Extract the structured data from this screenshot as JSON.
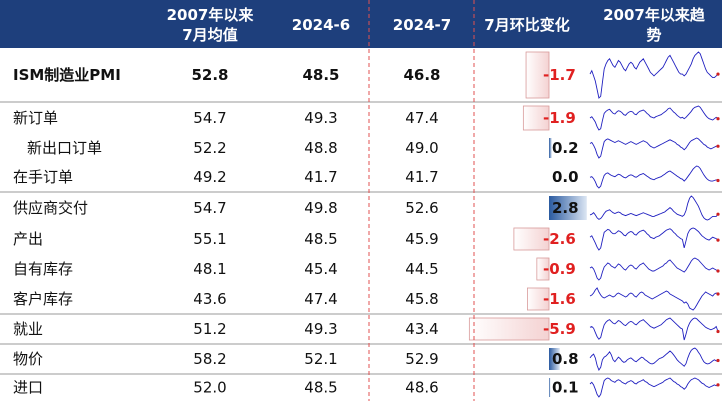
{
  "chart_data": {
    "type": "table",
    "header": {
      "avg": [
        "2007年以来",
        "7月均值"
      ],
      "jun": "2024-6",
      "jul": "2024-7",
      "chg": "7月环比变化",
      "trend": [
        "2007年以来趋",
        "势"
      ]
    },
    "rows": [
      {
        "label": "ISM制造业PMI",
        "avg": "52.8",
        "jun": "48.5",
        "jul": "46.8",
        "chg": "-1.7",
        "chg_value": -1.7,
        "bold": true,
        "indent": false,
        "trend": [
          49,
          51,
          48,
          45,
          40,
          35,
          36,
          44,
          52,
          55,
          57,
          58,
          56,
          54,
          53,
          55,
          57,
          56,
          54,
          52,
          51,
          53,
          55,
          56,
          55,
          53,
          52,
          54,
          56,
          57,
          58,
          56,
          54,
          52,
          50,
          49,
          48,
          49,
          50,
          51,
          52,
          53,
          55,
          57,
          59,
          60,
          58,
          56,
          54,
          52,
          50,
          49,
          49,
          48,
          49,
          51,
          53,
          55,
          58,
          60,
          61,
          62,
          61,
          58,
          55,
          52,
          50,
          49,
          48,
          47,
          47,
          48,
          49
        ]
      },
      {
        "label": "新订单",
        "avg": "54.7",
        "jun": "49.3",
        "jul": "47.4",
        "chg": "-1.9",
        "chg_value": -1.9,
        "bold": false,
        "indent": false,
        "trend": [
          48,
          50,
          46,
          42,
          35,
          30,
          32,
          44,
          55,
          58,
          60,
          61,
          58,
          55,
          54,
          57,
          59,
          58,
          56,
          53,
          52,
          55,
          57,
          58,
          57,
          54,
          53,
          56,
          58,
          59,
          60,
          58,
          55,
          53,
          50,
          49,
          48,
          50,
          51,
          52,
          53,
          55,
          57,
          59,
          62,
          63,
          60,
          57,
          55,
          52,
          50,
          48,
          49,
          47,
          49,
          52,
          55,
          58,
          62,
          64,
          65,
          66,
          64,
          60,
          56,
          52,
          49,
          47,
          46,
          45,
          47,
          49,
          47
        ]
      },
      {
        "label": "新出口订单",
        "avg": "52.2",
        "jun": "48.8",
        "jul": "49.0",
        "chg": "0.2",
        "chg_value": 0.2,
        "bold": false,
        "indent": true,
        "trend": [
          52,
          53,
          50,
          46,
          40,
          36,
          38,
          46,
          54,
          56,
          57,
          56,
          55,
          54,
          53,
          54,
          55,
          54,
          53,
          52,
          51,
          52,
          53,
          54,
          53,
          52,
          51,
          52,
          53,
          54,
          55,
          54,
          53,
          51,
          49,
          48,
          47,
          48,
          49,
          50,
          51,
          52,
          53,
          54,
          55,
          56,
          55,
          54,
          53,
          51,
          50,
          48,
          47,
          45,
          47,
          50,
          53,
          55,
          56,
          57,
          58,
          57,
          55,
          53,
          51,
          50,
          48,
          47,
          46,
          47,
          48,
          49,
          49
        ]
      },
      {
        "label": "在手订单",
        "avg": "49.2",
        "jun": "41.7",
        "jul": "41.7",
        "chg": "0.0",
        "chg_value": 0.0,
        "bold": false,
        "indent": false,
        "trend": [
          47,
          48,
          45,
          40,
          33,
          30,
          33,
          42,
          50,
          53,
          54,
          52,
          50,
          49,
          48,
          50,
          52,
          51,
          49,
          47,
          46,
          48,
          50,
          51,
          50,
          48,
          47,
          49,
          51,
          52,
          53,
          51,
          49,
          47,
          45,
          44,
          43,
          45,
          46,
          47,
          48,
          50,
          52,
          54,
          56,
          57,
          55,
          53,
          51,
          49,
          47,
          45,
          44,
          41,
          44,
          48,
          52,
          56,
          60,
          63,
          65,
          64,
          61,
          56,
          51,
          47,
          44,
          42,
          41,
          41,
          42,
          43,
          42
        ]
      },
      {
        "label": "供应商交付",
        "avg": "54.7",
        "jun": "49.8",
        "jul": "52.6",
        "chg": "2.8",
        "chg_value": 2.8,
        "bold": false,
        "indent": false,
        "trend": [
          52,
          53,
          55,
          52,
          48,
          46,
          47,
          50,
          54,
          57,
          58,
          59,
          57,
          55,
          54,
          55,
          56,
          55,
          53,
          52,
          51,
          52,
          53,
          54,
          53,
          52,
          51,
          52,
          53,
          54,
          55,
          54,
          53,
          52,
          51,
          50,
          50,
          51,
          52,
          53,
          54,
          55,
          56,
          58,
          60,
          62,
          60,
          57,
          55,
          53,
          52,
          51,
          50,
          52,
          58,
          68,
          75,
          78,
          76,
          72,
          68,
          64,
          58,
          52,
          48,
          46,
          45,
          46,
          48,
          50,
          50,
          50,
          53
        ]
      },
      {
        "label": "产出",
        "avg": "55.1",
        "jun": "48.5",
        "jul": "45.9",
        "chg": "-2.6",
        "chg_value": -2.6,
        "bold": false,
        "indent": false,
        "trend": [
          50,
          52,
          47,
          42,
          36,
          32,
          35,
          46,
          57,
          59,
          61,
          60,
          57,
          55,
          55,
          57,
          59,
          58,
          56,
          53,
          52,
          55,
          57,
          58,
          57,
          54,
          53,
          56,
          58,
          59,
          60,
          58,
          55,
          53,
          50,
          49,
          48,
          50,
          51,
          52,
          54,
          56,
          58,
          60,
          61,
          62,
          60,
          57,
          55,
          52,
          50,
          48,
          47,
          35,
          45,
          55,
          60,
          62,
          63,
          62,
          60,
          58,
          55,
          52,
          50,
          48,
          47,
          46,
          48,
          50,
          49,
          48,
          46
        ]
      },
      {
        "label": "自有库存",
        "avg": "48.1",
        "jun": "45.4",
        "jul": "44.5",
        "chg": "-0.9",
        "chg_value": -0.9,
        "bold": false,
        "indent": false,
        "trend": [
          47,
          48,
          46,
          42,
          37,
          35,
          37,
          43,
          48,
          50,
          52,
          51,
          49,
          48,
          47,
          49,
          51,
          50,
          48,
          46,
          45,
          47,
          49,
          50,
          49,
          47,
          46,
          48,
          50,
          51,
          52,
          50,
          48,
          46,
          45,
          44,
          44,
          45,
          46,
          47,
          48,
          49,
          51,
          52,
          54,
          55,
          53,
          51,
          49,
          47,
          46,
          45,
          44,
          43,
          45,
          48,
          51,
          54,
          56,
          57,
          56,
          55,
          53,
          51,
          49,
          47,
          46,
          45,
          46,
          47,
          46,
          45,
          44
        ]
      },
      {
        "label": "客户库存",
        "avg": "43.6",
        "jun": "47.4",
        "jul": "45.8",
        "chg": "-1.6",
        "chg_value": -1.6,
        "bold": false,
        "indent": false,
        "trend": [
          44,
          45,
          47,
          50,
          52,
          48,
          45,
          43,
          42,
          43,
          44,
          45,
          44,
          43,
          44,
          46,
          47,
          46,
          45,
          44,
          43,
          44,
          46,
          47,
          46,
          44,
          43,
          45,
          47,
          48,
          47,
          45,
          44,
          43,
          42,
          41,
          42,
          43,
          44,
          45,
          46,
          47,
          48,
          49,
          48,
          46,
          45,
          44,
          43,
          42,
          41,
          40,
          39,
          37,
          38,
          36,
          32,
          31,
          30,
          32,
          35,
          38,
          41,
          44,
          46,
          48,
          47,
          46,
          45,
          44,
          46,
          47,
          46
        ]
      },
      {
        "label": "就业",
        "avg": "51.2",
        "jun": "49.3",
        "jul": "43.4",
        "chg": "-5.9",
        "chg_value": -5.9,
        "bold": false,
        "indent": false,
        "trend": [
          48,
          49,
          47,
          42,
          37,
          34,
          36,
          44,
          51,
          54,
          56,
          57,
          55,
          53,
          52,
          54,
          56,
          55,
          53,
          51,
          50,
          52,
          54,
          55,
          54,
          52,
          51,
          53,
          55,
          56,
          57,
          55,
          53,
          51,
          49,
          48,
          47,
          48,
          49,
          50,
          51,
          53,
          55,
          57,
          58,
          59,
          57,
          55,
          53,
          51,
          49,
          47,
          46,
          33,
          40,
          48,
          53,
          56,
          58,
          59,
          58,
          56,
          54,
          52,
          50,
          48,
          47,
          46,
          45,
          46,
          47,
          49,
          43
        ]
      },
      {
        "label": "物价",
        "avg": "58.2",
        "jun": "52.1",
        "jul": "52.9",
        "chg": "0.8",
        "chg_value": 0.8,
        "bold": false,
        "indent": false,
        "trend": [
          60,
          66,
          70,
          60,
          40,
          28,
          35,
          55,
          62,
          65,
          70,
          76,
          68,
          55,
          50,
          56,
          62,
          58,
          52,
          48,
          50,
          55,
          58,
          60,
          56,
          52,
          50,
          54,
          58,
          62,
          60,
          55,
          52,
          48,
          45,
          44,
          46,
          50,
          54,
          58,
          60,
          62,
          66,
          70,
          74,
          78,
          74,
          68,
          62,
          55,
          50,
          46,
          42,
          38,
          45,
          60,
          72,
          80,
          84,
          86,
          82,
          75,
          68,
          58,
          50,
          46,
          44,
          45,
          48,
          52,
          55,
          52,
          53
        ]
      },
      {
        "label": "进口",
        "avg": "52.0",
        "jun": "48.5",
        "jul": "48.6",
        "chg": "0.1",
        "chg_value": 0.1,
        "bold": false,
        "indent": false,
        "trend": [
          50,
          52,
          49,
          44,
          38,
          35,
          38,
          46,
          54,
          56,
          57,
          56,
          54,
          53,
          52,
          54,
          55,
          54,
          52,
          51,
          50,
          52,
          53,
          54,
          53,
          51,
          50,
          52,
          53,
          54,
          55,
          53,
          52,
          50,
          49,
          48,
          47,
          48,
          49,
          50,
          51,
          52,
          54,
          55,
          56,
          57,
          55,
          53,
          52,
          50,
          49,
          47,
          46,
          44,
          46,
          50,
          53,
          55,
          56,
          57,
          56,
          55,
          53,
          51,
          50,
          48,
          47,
          46,
          47,
          48,
          49,
          48,
          49
        ]
      }
    ],
    "chg_bar_range": [
      -6,
      3
    ]
  },
  "colors": {
    "header_bg": "#1e3f7c",
    "neg_text": "#e02020",
    "pos_text": "#111111",
    "neg_bar": "#f6dede",
    "pos_bar": "#2e5fa0",
    "trend_line": "#2020c0",
    "trend_hi": "#d02020"
  }
}
